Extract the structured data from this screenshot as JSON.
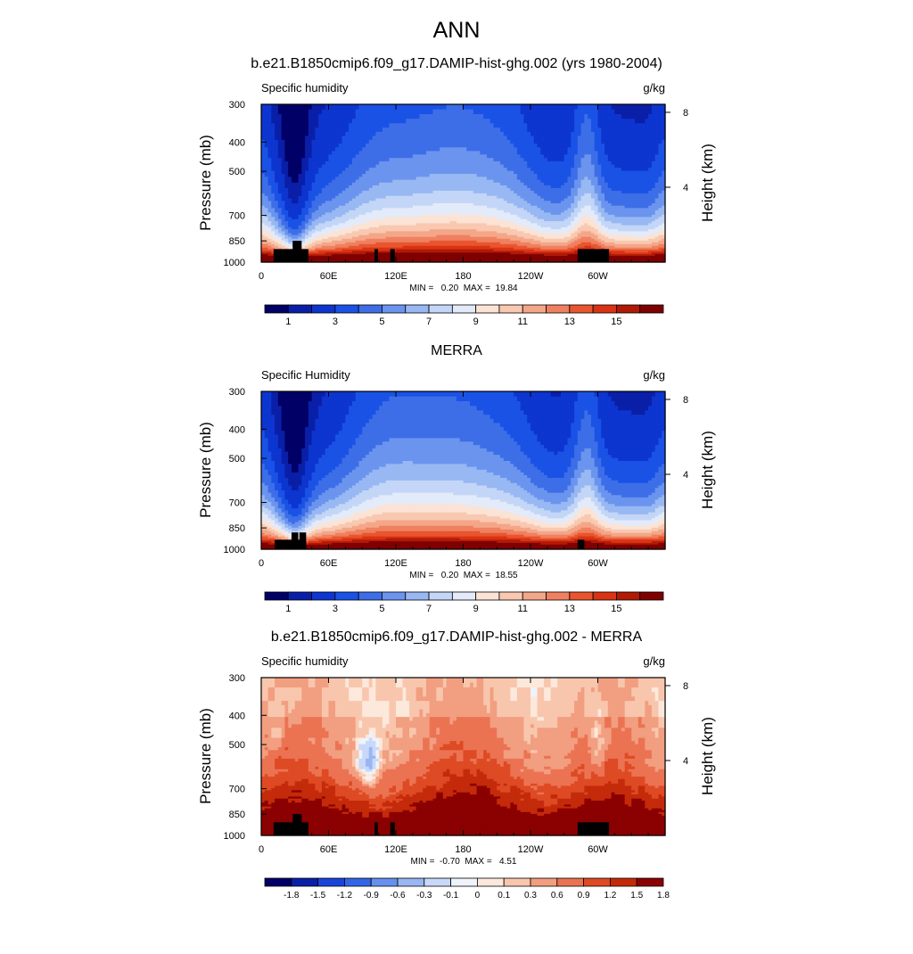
{
  "figure": {
    "title": "ANN",
    "colors": {
      "seq": [
        "#000066",
        "#0a1fa8",
        "#0d35cf",
        "#1a52e6",
        "#3d6ee8",
        "#6a94ee",
        "#98b8f3",
        "#c4d6f7",
        "#e3ebfa",
        "#fbe3d5",
        "#f9c8b0",
        "#f4a688",
        "#ef8060",
        "#e8552f",
        "#d93314",
        "#b01a07",
        "#7f0000"
      ],
      "div": [
        "#000066",
        "#0a1fa8",
        "#1a44d9",
        "#3366e6",
        "#6690ed",
        "#99b6f2",
        "#c8d8f8",
        "#eef3fc",
        "#fde8dc",
        "#f8c6ad",
        "#f29e80",
        "#eb7352",
        "#de4a24",
        "#c42b0b",
        "#8b0000"
      ],
      "terrain": "#000000"
    }
  },
  "chart_data": [
    {
      "type": "heatmap",
      "panel_title": "b.e21.B1850cmip6.f09_g17.DAMIP-hist-ghg.002 (yrs 1980-2004)",
      "left_string": "Specific humidity",
      "right_string": "g/kg",
      "ylabel": "Pressure (mb)",
      "ylabel_right": "Height (km)",
      "xticks": [
        "0",
        "60E",
        "120E",
        "180",
        "120W",
        "60W"
      ],
      "xtick_values": [
        0,
        60,
        120,
        180,
        240,
        300
      ],
      "xlim": [
        0,
        360
      ],
      "yticks": [
        "300",
        "400",
        "500",
        "700",
        "850",
        "1000"
      ],
      "ytick_values": [
        300,
        400,
        500,
        700,
        850,
        1000
      ],
      "ylim": [
        300,
        1000
      ],
      "height_ticks": [
        "8",
        "4"
      ],
      "height_tick_values": [
        8,
        4
      ],
      "stats": "MIN =   0.20  MAX =  19.84",
      "min": 0.2,
      "max": 19.84,
      "colorbar": {
        "labels": [
          "1",
          "3",
          "5",
          "7",
          "9",
          "11",
          "13",
          "15"
        ],
        "levels": [
          0.5,
          1,
          2,
          3,
          4,
          5,
          6,
          7,
          8,
          9,
          10,
          11,
          12,
          13,
          14,
          15
        ]
      },
      "terrain_lon_ranges": [
        [
          11,
          42,
          "base"
        ],
        [
          28,
          36,
          "tall"
        ],
        [
          101,
          104,
          "base"
        ],
        [
          115,
          119,
          "base"
        ],
        [
          282,
          310,
          "base"
        ]
      ]
    },
    {
      "type": "heatmap",
      "panel_title": "MERRA",
      "left_string": "Specific Humidity",
      "right_string": "g/kg",
      "ylabel": "Pressure (mb)",
      "ylabel_right": "Height (km)",
      "xticks": [
        "0",
        "60E",
        "120E",
        "180",
        "120W",
        "60W"
      ],
      "xtick_values": [
        0,
        60,
        120,
        180,
        240,
        300
      ],
      "xlim": [
        0,
        360
      ],
      "yticks": [
        "300",
        "400",
        "500",
        "700",
        "850",
        "1000"
      ],
      "ytick_values": [
        300,
        400,
        500,
        700,
        850,
        1000
      ],
      "ylim": [
        300,
        1000
      ],
      "height_ticks": [
        "8",
        "4"
      ],
      "height_tick_values": [
        8,
        4
      ],
      "stats": "MIN =   0.20  MAX =  18.55",
      "min": 0.2,
      "max": 18.55,
      "colorbar": {
        "labels": [
          "1",
          "3",
          "5",
          "7",
          "9",
          "11",
          "13",
          "15"
        ],
        "levels": [
          0.5,
          1,
          2,
          3,
          4,
          5,
          6,
          7,
          8,
          9,
          10,
          11,
          12,
          13,
          14,
          15
        ]
      },
      "terrain_lon_ranges": [
        [
          12,
          40,
          "low"
        ],
        [
          27,
          33,
          "mid"
        ],
        [
          34,
          40,
          "mid"
        ],
        [
          282,
          288,
          "low"
        ]
      ]
    },
    {
      "type": "heatmap",
      "panel_title": "b.e21.B1850cmip6.f09_g17.DAMIP-hist-ghg.002 - MERRA",
      "left_string": "Specific humidity",
      "right_string": "g/kg",
      "ylabel": "Pressure (mb)",
      "ylabel_right": "Height (km)",
      "xticks": [
        "0",
        "60E",
        "120E",
        "180",
        "120W",
        "60W"
      ],
      "xtick_values": [
        0,
        60,
        120,
        180,
        240,
        300
      ],
      "xlim": [
        0,
        360
      ],
      "yticks": [
        "300",
        "400",
        "500",
        "700",
        "850",
        "1000"
      ],
      "ytick_values": [
        300,
        400,
        500,
        700,
        850,
        1000
      ],
      "ylim": [
        300,
        1000
      ],
      "height_ticks": [
        "8",
        "4"
      ],
      "height_tick_values": [
        8,
        4
      ],
      "stats": "MIN =  -0.70  MAX =   4.51",
      "min": -0.7,
      "max": 4.51,
      "colorbar": {
        "labels": [
          "-1.8",
          "-1.5",
          "-1.2",
          "-0.9",
          "-0.6",
          "-0.3",
          "-0.1",
          "0",
          "0.1",
          "0.3",
          "0.6",
          "0.9",
          "1.2",
          "1.5",
          "1.8"
        ],
        "levels": [
          -1.8,
          -1.5,
          -1.2,
          -0.9,
          -0.6,
          -0.3,
          -0.1,
          0,
          0.1,
          0.3,
          0.6,
          0.9,
          1.2,
          1.5,
          1.8
        ]
      },
      "terrain_lon_ranges": [
        [
          11,
          42,
          "base"
        ],
        [
          28,
          36,
          "tall"
        ],
        [
          101,
          104,
          "base"
        ],
        [
          115,
          119,
          "base"
        ],
        [
          282,
          310,
          "base"
        ]
      ]
    }
  ]
}
